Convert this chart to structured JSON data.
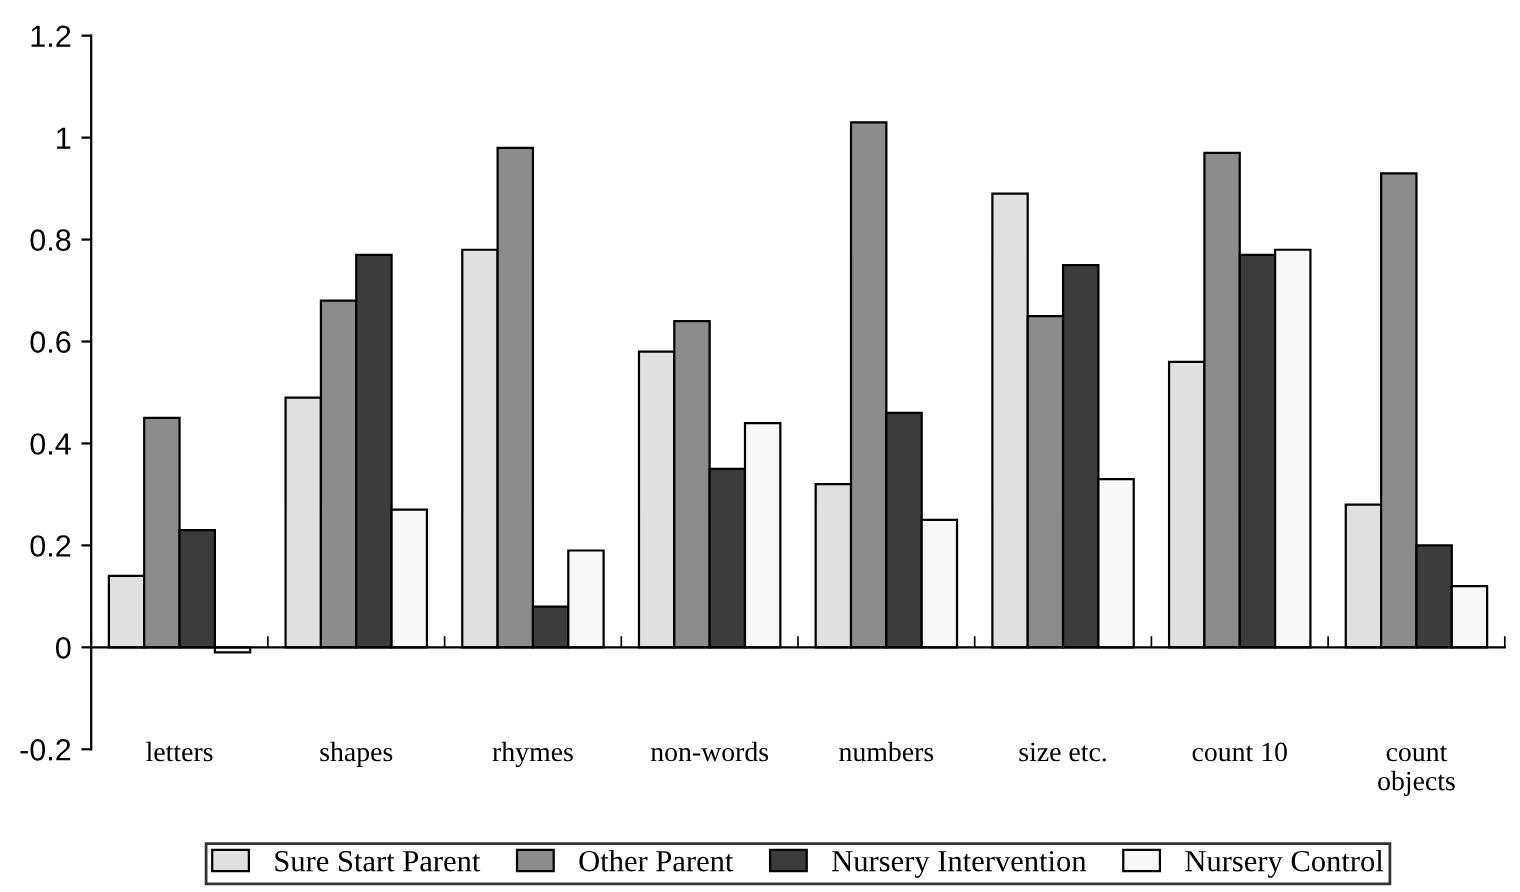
{
  "chart_data": {
    "type": "bar",
    "categories": [
      "letters",
      "shapes",
      "rhymes",
      "non-words",
      "numbers",
      "size etc.",
      "count 10",
      "count\nobjects"
    ],
    "series": [
      {
        "name": "Sure Start Parent",
        "color": "#e0e0e0",
        "values": [
          0.14,
          0.49,
          0.78,
          0.58,
          0.32,
          0.89,
          0.56,
          0.28
        ]
      },
      {
        "name": "Other Parent",
        "color": "#8c8c8c",
        "values": [
          0.45,
          0.68,
          0.98,
          0.64,
          1.03,
          0.65,
          0.97,
          0.93
        ]
      },
      {
        "name": "Nursery Intervention",
        "color": "#3c3c3c",
        "values": [
          0.23,
          0.77,
          0.08,
          0.35,
          0.46,
          0.75,
          0.77,
          0.2
        ]
      },
      {
        "name": "Nursery Control",
        "color": "#f7f7f7",
        "values": [
          -0.01,
          0.27,
          0.19,
          0.44,
          0.25,
          0.33,
          0.78,
          0.12
        ]
      }
    ],
    "ylim": [
      -0.2,
      1.2
    ],
    "yticks": [
      -0.2,
      0,
      0.2,
      0.4,
      0.6,
      0.8,
      1,
      1.2
    ],
    "legend": "bottom"
  }
}
